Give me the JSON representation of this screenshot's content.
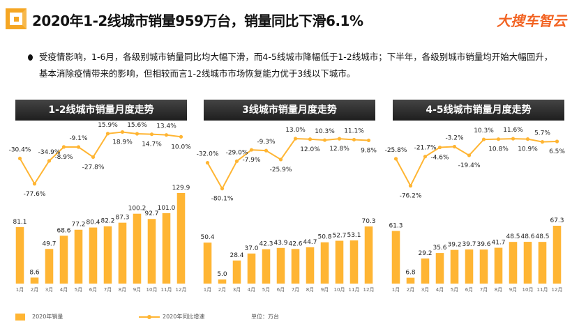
{
  "header": {
    "title": "2020年1-2线城市销量959万台，销量同比下滑6.1%",
    "brand": "大搜车智云"
  },
  "summary": "受疫情影响，1-6月，各级别城市销量同比均大幅下滑，而4-5线城市降幅低于1-2线城市；下半年，各级别城市销量均开始大幅回升，基本消除疫情带来的影响，但相较而言1-2线城市市场恢复能力优于3线以下城市。",
  "legend": {
    "bar": "2020年销量",
    "line": "2020年同比增速",
    "unit": "单位：万台"
  },
  "colors": {
    "bar": "#ffb533",
    "line": "#ffb533",
    "panel_header": "#2b2b2b"
  },
  "chart_data": [
    {
      "type": "bar+line",
      "title": "1-2线城市销量月度走势",
      "categories": [
        "1月",
        "2月",
        "3月",
        "4月",
        "5月",
        "6月",
        "7月",
        "8月",
        "9月",
        "10月",
        "11月",
        "12月"
      ],
      "series": [
        {
          "name": "2020年销量",
          "type": "bar",
          "values": [
            81.1,
            8.6,
            49.7,
            68.6,
            77.2,
            80.4,
            82.2,
            87.3,
            100.2,
            92.7,
            101.0,
            129.9
          ],
          "labels": [
            "81.1",
            "8.6",
            "49.7",
            "68.6",
            "77.2",
            "80.4",
            "82.2",
            "87.3",
            "100.2",
            "92.7",
            "101.0",
            "129.9"
          ]
        },
        {
          "name": "2020年同比增速",
          "type": "line",
          "values": [
            -30.4,
            -77.6,
            -34.9,
            -8.9,
            -9.1,
            -27.8,
            15.9,
            18.9,
            15.6,
            14.7,
            13.4,
            10.0
          ],
          "labels": [
            "-30.4%",
            "-77.6%",
            "-34.9%",
            "-8.9%",
            "-9.1%",
            "-27.8%",
            "15.9%",
            "18.9%",
            "15.6%",
            "14.7%",
            "13.4%",
            "10.0%"
          ]
        }
      ]
    },
    {
      "type": "bar+line",
      "title": "3线城市销量月度走势",
      "categories": [
        "1月",
        "2月",
        "3月",
        "4月",
        "5月",
        "6月",
        "7月",
        "8月",
        "9月",
        "10月",
        "11月",
        "12月"
      ],
      "series": [
        {
          "name": "2020年销量",
          "type": "bar",
          "values": [
            50.4,
            5.0,
            28.4,
            37.0,
            42.3,
            43.9,
            42.6,
            44.7,
            50.8,
            52.7,
            53.1,
            70.3
          ],
          "labels": [
            "50.4",
            "5.0",
            "28.4",
            "37.0",
            "42.3",
            "43.9",
            "42.6",
            "44.7",
            "50.8",
            "52.7",
            "53.1",
            "70.3"
          ]
        },
        {
          "name": "2020年同比增速",
          "type": "line",
          "values": [
            -32.0,
            -80.1,
            -29.0,
            -7.9,
            -9.3,
            -25.9,
            13.0,
            12.0,
            10.3,
            12.8,
            11.1,
            9.8
          ],
          "labels": [
            "-32.0%",
            "-80.1%",
            "-29.0%",
            "-7.9%",
            "-9.3%",
            "-25.9%",
            "13.0%",
            "12.0%",
            "10.3%",
            "12.8%",
            "11.1%",
            "9.8%"
          ]
        }
      ]
    },
    {
      "type": "bar+line",
      "title": "4-5线城市销量月度走势",
      "categories": [
        "1月",
        "2月",
        "3月",
        "4月",
        "5月",
        "6月",
        "7月",
        "8月",
        "9月",
        "10月",
        "11月",
        "12月"
      ],
      "series": [
        {
          "name": "2020年销量",
          "type": "bar",
          "values": [
            61.3,
            6.8,
            29.2,
            35.6,
            39.2,
            39.7,
            39.6,
            41.7,
            48.5,
            48.6,
            48.5,
            67.3
          ],
          "labels": [
            "61.3",
            "6.8",
            "29.2",
            "35.6",
            "39.2",
            "39.7",
            "39.6",
            "41.7",
            "48.5",
            "48.6",
            "48.5",
            "67.3"
          ]
        },
        {
          "name": "2020年同比增速",
          "type": "line",
          "values": [
            -25.8,
            -76.2,
            -21.7,
            -4.6,
            -3.2,
            -19.4,
            10.3,
            10.8,
            11.6,
            10.9,
            5.7,
            6.5
          ],
          "labels": [
            "-25.8%",
            "-76.2%",
            "-21.7%",
            "-4.6%",
            "-3.2%",
            "-19.4%",
            "10.3%",
            "10.8%",
            "11.6%",
            "10.9%",
            "5.7%",
            "6.5%"
          ]
        }
      ]
    }
  ]
}
